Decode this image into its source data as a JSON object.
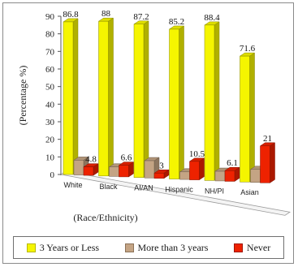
{
  "chart_data": {
    "type": "bar",
    "title": "",
    "xlabel": "(Race/Ethnicity)",
    "ylabel": "(Percentage %)",
    "ylim": [
      0,
      90
    ],
    "yticks": [
      0,
      10,
      20,
      30,
      40,
      50,
      60,
      70,
      80,
      90
    ],
    "categories": [
      "White",
      "Black",
      "AI/AN",
      "Hispanic",
      "NH/PI",
      "Asian"
    ],
    "series": [
      {
        "name": "3 Years or Less",
        "values": [
          86.8,
          88,
          87.2,
          85.2,
          88.4,
          71.6
        ],
        "labels": [
          "86.8",
          "88",
          "87.2",
          "85.2",
          "88.4",
          "71.6"
        ],
        "color": "#f5f500"
      },
      {
        "name": "More than 3 years",
        "values": [
          8.4,
          5.4,
          9.8,
          4.3,
          5.5,
          7.4
        ],
        "labels": [],
        "color": "#c4a484"
      },
      {
        "name": "Never",
        "values": [
          4.8,
          6.6,
          3,
          10.5,
          6.1,
          21
        ],
        "labels": [
          "4.8",
          "6.6",
          "3",
          "10.5",
          "6.1",
          "21"
        ],
        "color": "#ee2200"
      }
    ],
    "grid": false,
    "legend_position": "bottom",
    "style": "3d"
  }
}
